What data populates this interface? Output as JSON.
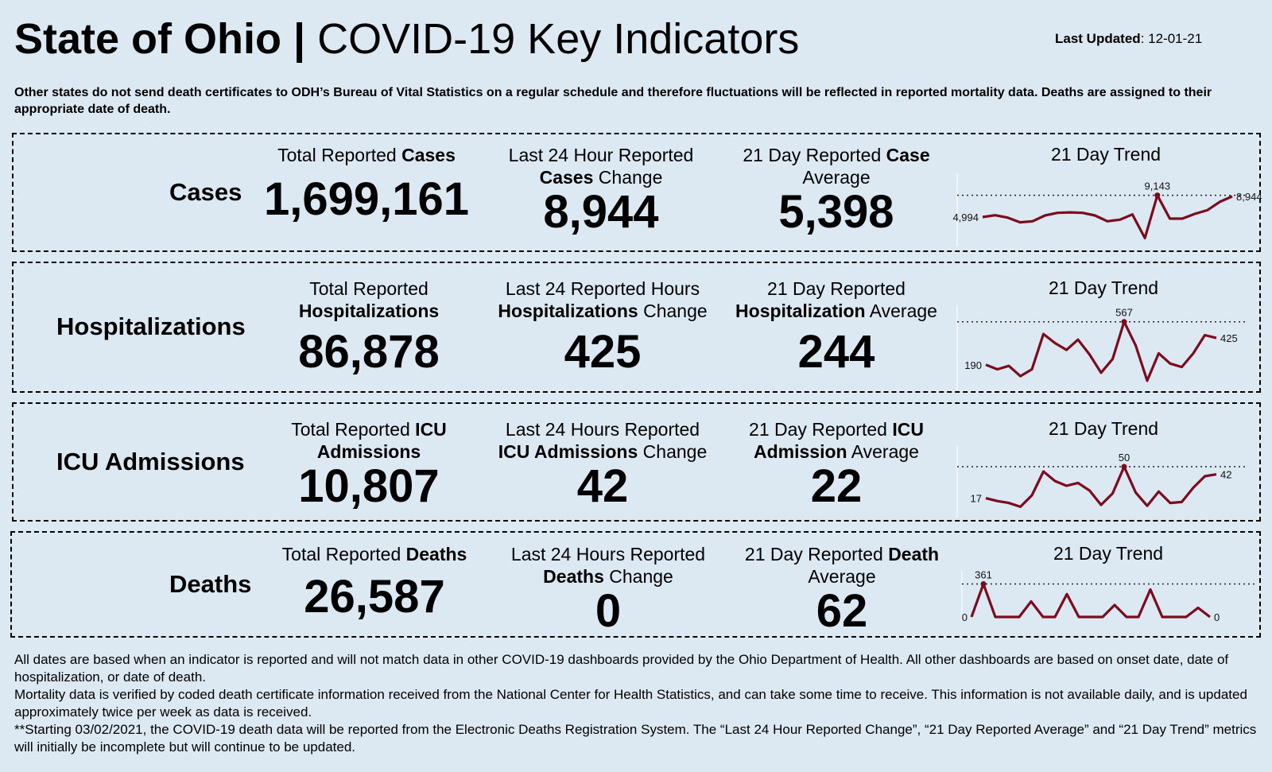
{
  "header": {
    "title_bold": "State of Ohio |",
    "title_rest": " COVID-19  Key Indicators",
    "updated_label": "Last Updated",
    "updated_value": ": 12-01-21",
    "note": "Other states do not send death certificates to ODH’s Bureau of Vital Statistics on a regular schedule and therefore fluctuations will be reflected in reported mortality data. Deaths are assigned to their appropriate date of death."
  },
  "rows": {
    "cases": {
      "label": "Cases",
      "total": {
        "h1": "Total Reported ",
        "h1b": "Cases",
        "h2": "",
        "h2b": "",
        "value": "1,699,161"
      },
      "change": {
        "h1": "Last 24 Hour Reported",
        "h1b": "",
        "h2": " Change",
        "h2b": "Cases",
        "value": "8,944"
      },
      "average": {
        "h1": "21 Day Reported ",
        "h1b": "Case",
        "h2": "Average",
        "h2b": "",
        "value": "5,398"
      },
      "trend_title": "21 Day Trend"
    },
    "hosp": {
      "label": "Hospitalizations",
      "total": {
        "h1": "Total Reported",
        "h1b": "",
        "h2": "",
        "h2b": "Hospitalizations",
        "value": "86,878"
      },
      "change": {
        "h1": "Last 24 Reported Hours",
        "h1b": "",
        "h2": " Change",
        "h2b": "Hospitalizations",
        "value": "425"
      },
      "average": {
        "h1": "21 Day Reported",
        "h1b": "",
        "h2": " Average",
        "h2b": "Hospitalization",
        "value": "244"
      },
      "trend_title": "21 Day Trend"
    },
    "icu": {
      "label": "ICU Admissions",
      "total": {
        "h1": "Total Reported ",
        "h1b": "ICU",
        "h2": "",
        "h2b": "Admissions",
        "value": "10,807"
      },
      "change": {
        "h1": "Last 24 Hours Reported",
        "h1b": "",
        "h2": " Change",
        "h2b": "ICU Admissions",
        "value": "42"
      },
      "average": {
        "h1": "21 Day Reported ",
        "h1b": "ICU",
        "h2": " Average",
        "h2b": "Admission",
        "value": "22"
      },
      "trend_title": "21 Day Trend"
    },
    "deaths": {
      "label": "Deaths",
      "total": {
        "h1": "Total Reported ",
        "h1b": "Deaths",
        "h2": "",
        "h2b": "",
        "value": "26,587"
      },
      "change": {
        "h1": "Last 24 Hours Reported",
        "h1b": "",
        "h2": " Change",
        "h2b": "Deaths",
        "value": "0"
      },
      "average": {
        "h1": "21 Day Reported ",
        "h1b": "Death",
        "h2": "Average",
        "h2b": "",
        "value": "62"
      },
      "trend_title": "21 Day Trend"
    }
  },
  "chart_data": [
    {
      "type": "line",
      "title": "21 Day Trend",
      "series_name": "Cases",
      "values": [
        4994,
        5350,
        4900,
        4000,
        4200,
        5300,
        5800,
        5900,
        5800,
        5300,
        4200,
        4500,
        5500,
        1000,
        9143,
        4700,
        4700,
        5600,
        6300,
        7900,
        8944
      ],
      "ylim": [
        0,
        10000
      ],
      "max_line": 9143,
      "labels": {
        "first": "4,994",
        "max": "9,143",
        "last": "8,944"
      },
      "color": "#7b0c1e"
    },
    {
      "type": "line",
      "title": "21 Day Trend",
      "series_name": "Hospitalizations",
      "values": [
        190,
        150,
        180,
        90,
        150,
        460,
        380,
        320,
        410,
        280,
        120,
        240,
        567,
        360,
        50,
        290,
        200,
        170,
        290,
        450,
        425
      ],
      "ylim": [
        0,
        600
      ],
      "max_line": 567,
      "labels": {
        "first": "190",
        "max": "567",
        "last": "425"
      },
      "color": "#7b0c1e"
    },
    {
      "type": "line",
      "title": "21 Day Trend",
      "series_name": "ICU Admissions",
      "values": [
        17,
        14,
        12,
        8,
        20,
        45,
        35,
        30,
        33,
        25,
        10,
        22,
        50,
        23,
        9,
        24,
        12,
        13,
        28,
        40,
        42
      ],
      "ylim": [
        0,
        60
      ],
      "max_line": 50,
      "labels": {
        "first": "17",
        "max": "50",
        "last": "42"
      },
      "color": "#7b0c1e"
    },
    {
      "type": "line",
      "title": "21 Day Trend",
      "series_name": "Deaths",
      "values": [
        0,
        361,
        0,
        0,
        0,
        170,
        0,
        0,
        250,
        0,
        0,
        0,
        130,
        0,
        0,
        300,
        0,
        0,
        0,
        100,
        0
      ],
      "ylim": [
        0,
        400
      ],
      "max_line": 361,
      "labels": {
        "first": "0",
        "max": "361",
        "last": "0"
      },
      "color": "#7b0c1e"
    }
  ],
  "footer": [
    "All dates are based when an indicator is reported and will not match data in other COVID-19 dashboards provided by the Ohio Department of Health. All other dashboards are based on onset date, date of hospitalization, or date of death.",
    "Mortality data is verified by coded death certificate information received from the National Center for Health Statistics, and can take some time to receive. This information is not available daily, and is updated approximately twice per week as data is received.",
    "**Starting 03/02/2021, the COVID-19 death data will be reported from the Electronic Deaths Registration System. The “Last 24 Hour Reported Change”, “21 Day Reported Average” and “21 Day Trend” metrics will initially be incomplete but will continue to be updated."
  ]
}
